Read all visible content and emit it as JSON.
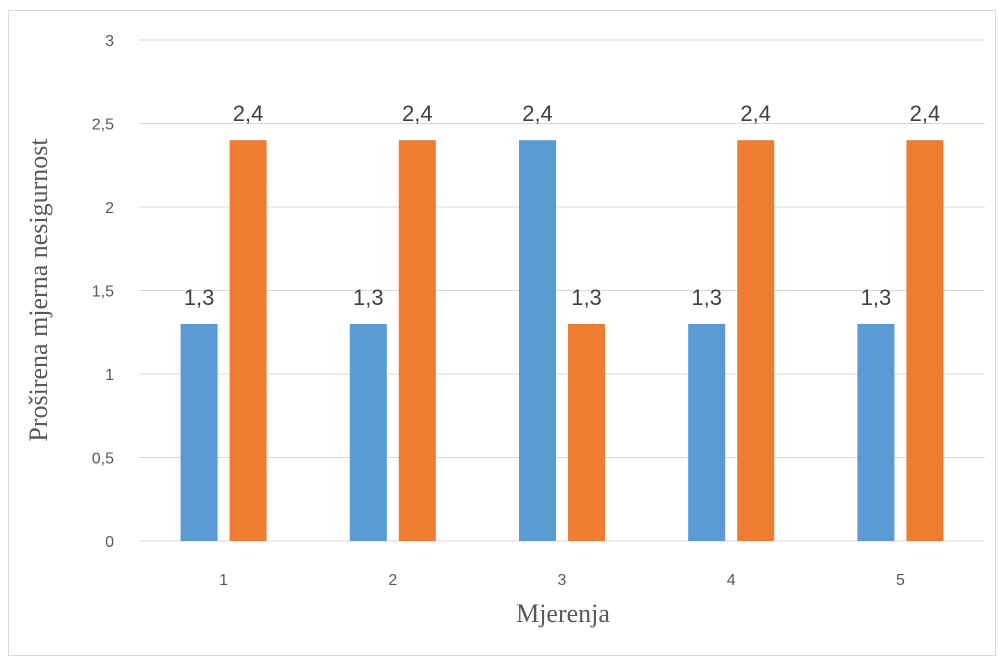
{
  "chart_data": {
    "type": "bar",
    "categories": [
      "1",
      "2",
      "3",
      "4",
      "5"
    ],
    "series": [
      {
        "values": [
          1.3,
          1.3,
          2.4,
          1.3,
          1.3
        ],
        "color": "#5b9bd5"
      },
      {
        "values": [
          2.4,
          2.4,
          1.3,
          2.4,
          2.4
        ],
        "color": "#ed7d31"
      }
    ],
    "data_labels": [
      [
        "1,3",
        "1,3",
        "2,4",
        "1,3",
        "1,3"
      ],
      [
        "2,4",
        "2,4",
        "1,3",
        "2,4",
        "2,4"
      ]
    ],
    "xlabel": "Mjerenja",
    "ylabel": "Proširena mjerna nesigurnost",
    "ylim": [
      0,
      3
    ],
    "yticks": [
      0,
      0.5,
      1,
      1.5,
      2,
      2.5,
      3
    ],
    "ytick_labels": [
      "0",
      "0,5",
      "1",
      "1,5",
      "2",
      "2,5",
      "3"
    ],
    "grid": true,
    "legend": "none"
  }
}
